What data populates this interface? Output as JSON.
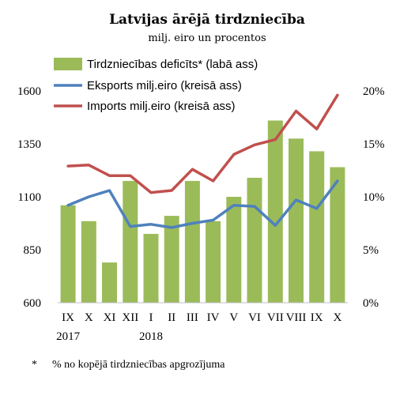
{
  "chart_data": {
    "type": "bar+line",
    "title": "Latvijas ārējā tirdzniecība",
    "subtitle": "milj. eiro un procentos",
    "categories": [
      "IX",
      "X",
      "XI",
      "XII",
      "I",
      "II",
      "III",
      "IV",
      "V",
      "VI",
      "VII",
      "VIII",
      "IX",
      "X"
    ],
    "year_labels": [
      {
        "category_index": 0,
        "label": "2017"
      },
      {
        "category_index": 4,
        "label": "2018"
      }
    ],
    "left_axis": {
      "ylim": [
        600,
        1600
      ],
      "ticks": [
        "600",
        "850",
        "1100",
        "1350",
        "1600"
      ]
    },
    "right_axis": {
      "ylim": [
        0,
        20
      ],
      "ticks": [
        "0%",
        "5%",
        "10%",
        "15%",
        "20%"
      ]
    },
    "series": [
      {
        "name": "Tirdzniecības deficīts* (labā ass)",
        "type": "bar",
        "axis": "right",
        "color": "#9bbb59",
        "values": [
          9.2,
          7.7,
          3.8,
          11.5,
          6.5,
          8.2,
          11.5,
          7.7,
          10.0,
          11.8,
          17.2,
          15.5,
          14.3,
          12.8
        ]
      },
      {
        "name": "Eksports milj.eiro (kreisā ass)",
        "type": "line",
        "axis": "left",
        "color": "#4f81bd",
        "values": [
          1060,
          1100,
          1130,
          960,
          970,
          955,
          975,
          990,
          1060,
          1055,
          965,
          1085,
          1045,
          1175
        ]
      },
      {
        "name": "Imports milj.eiro (kreisā ass)",
        "type": "line",
        "axis": "left",
        "color": "#c0504d",
        "values": [
          1245,
          1250,
          1200,
          1200,
          1120,
          1130,
          1230,
          1175,
          1300,
          1345,
          1370,
          1505,
          1420,
          1580
        ]
      }
    ],
    "legend_position": "top",
    "grid": false,
    "footnote_marker": "*",
    "footnote": "% no kopējā tirdzniecības apgrozījuma"
  }
}
